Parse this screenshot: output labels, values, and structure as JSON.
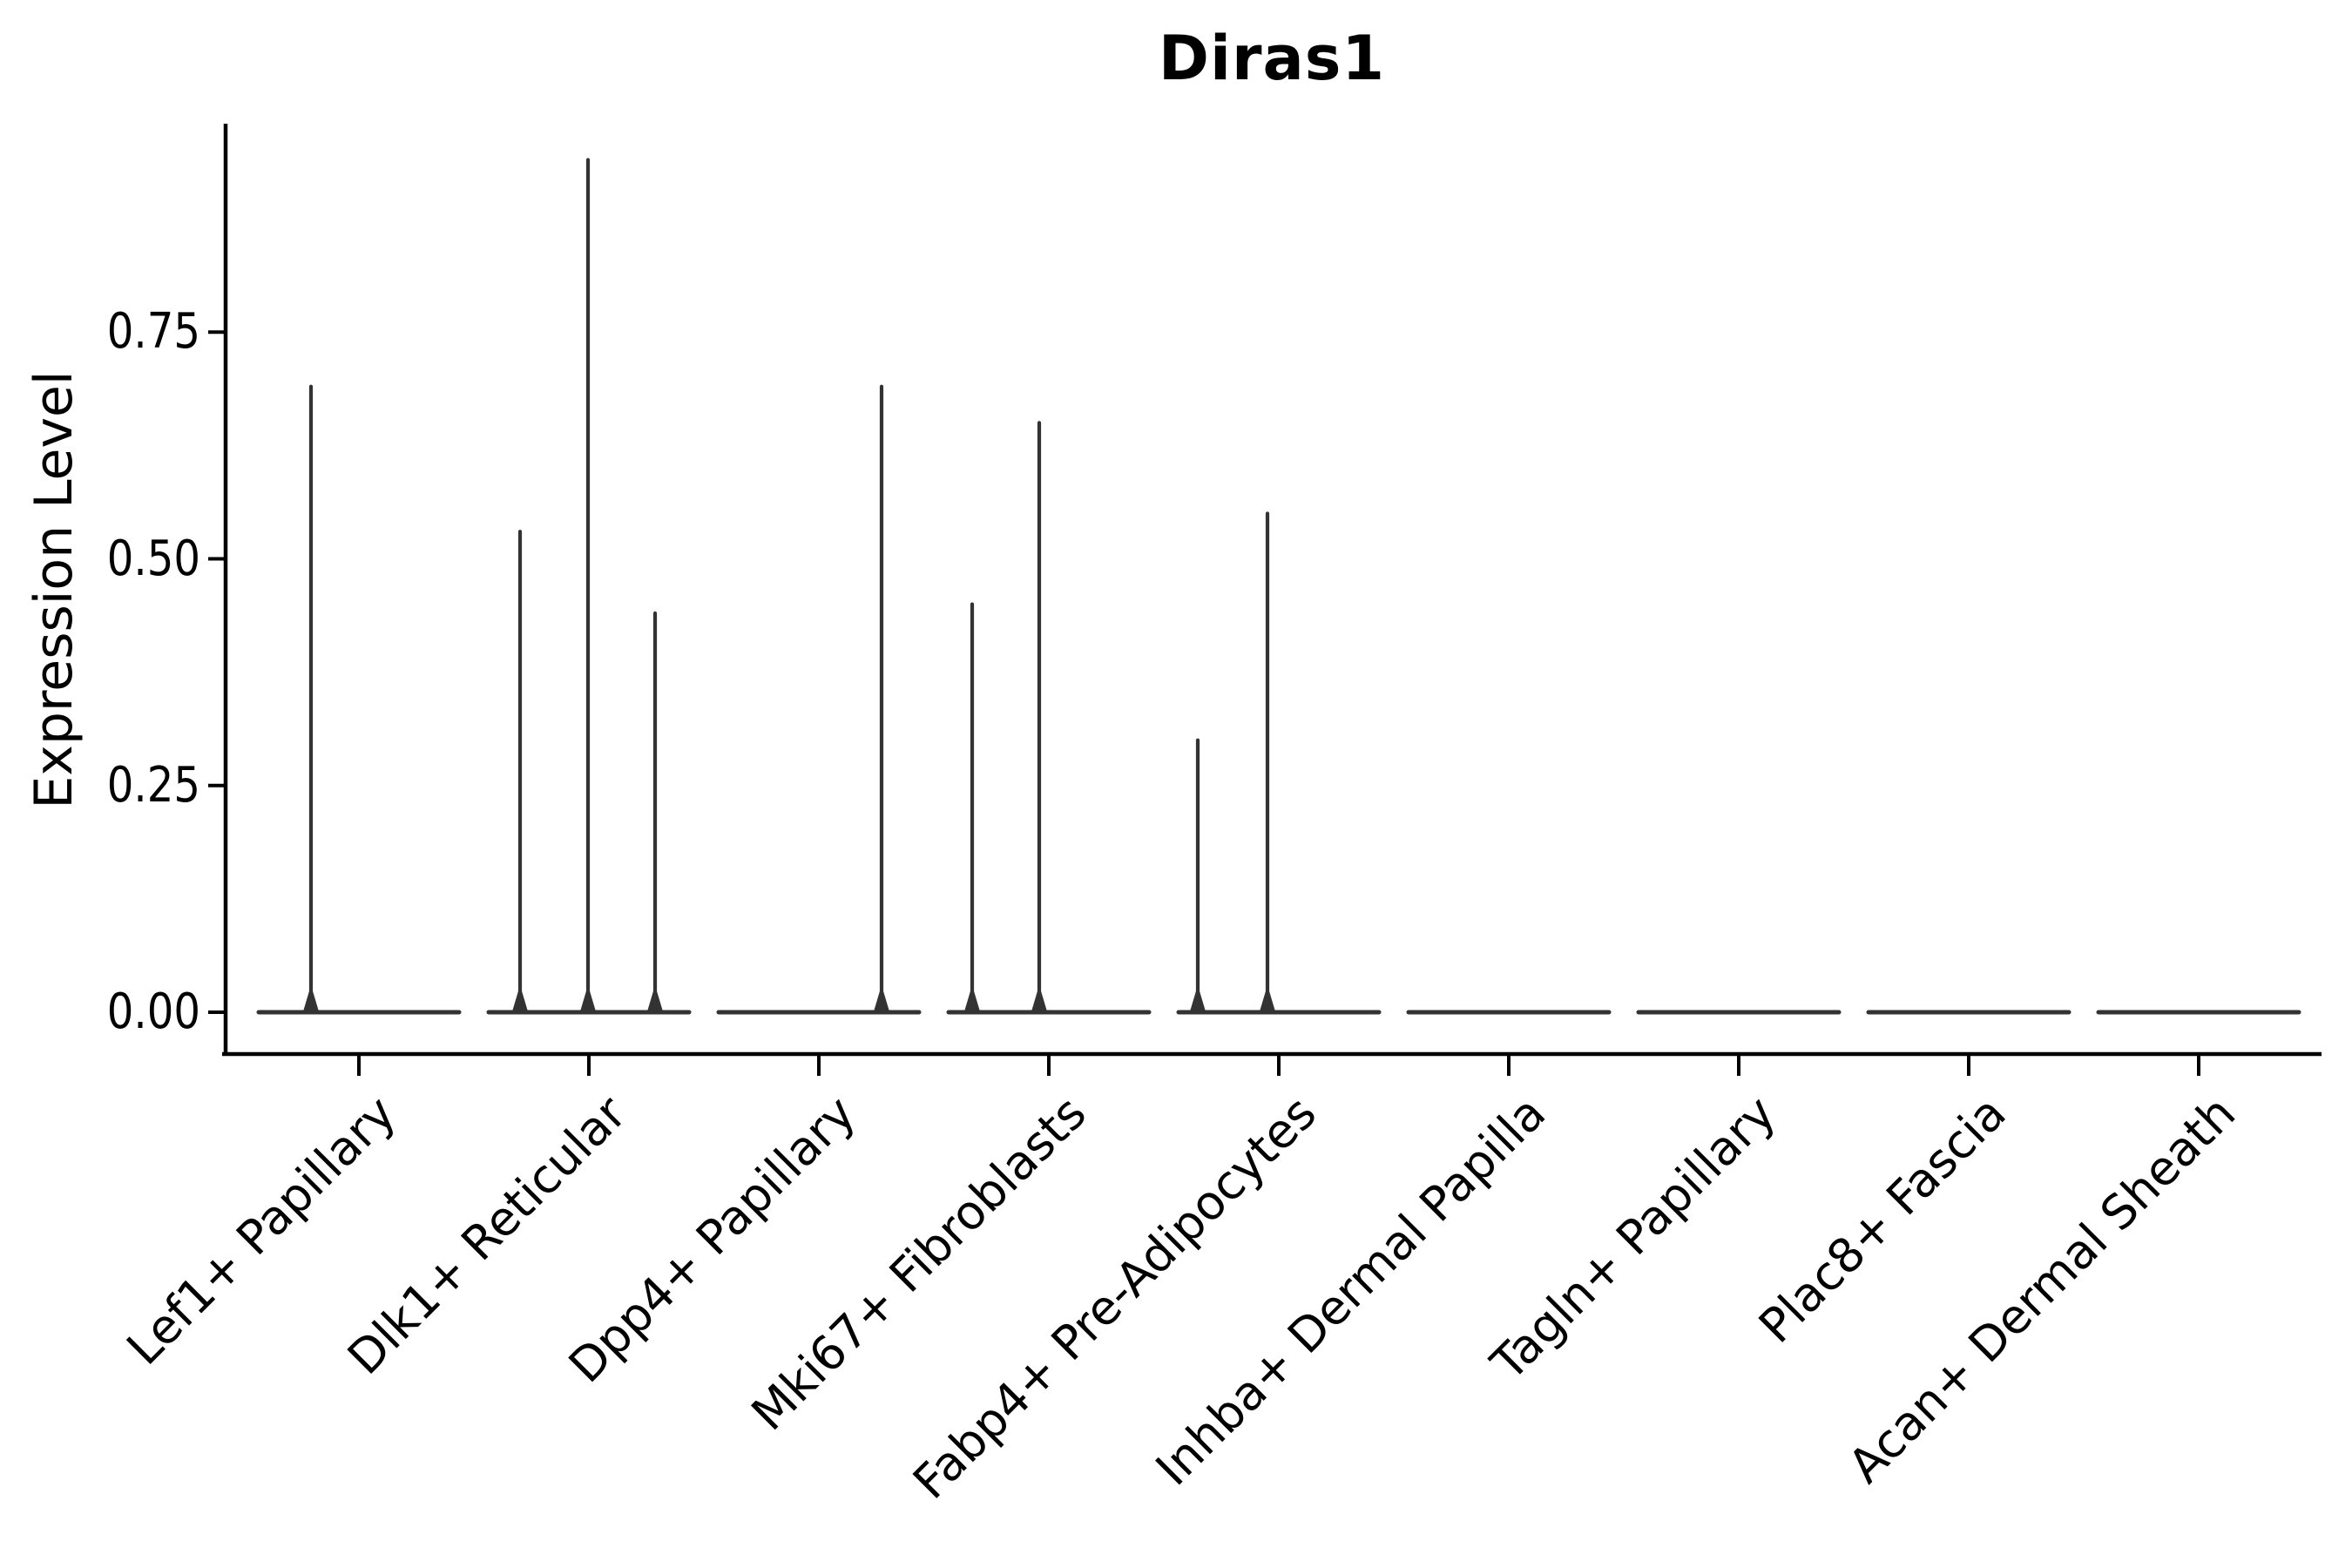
{
  "figure": {
    "title": "Diras1",
    "background_color": "#ffffff"
  },
  "y_axis": {
    "label": "Expression Level",
    "tick_labels": [
      "0.00",
      "0.25",
      "0.50",
      "0.75"
    ]
  },
  "x_axis": {
    "label": "",
    "tick_labels": [
      "Lef1+ Papillary",
      "Dlk1+ Reticular",
      "Dpp4+ Papillary",
      "Mki67+ Fibroblasts",
      "Fabp4+ Pre-Adipocytes",
      "Inhba+ Dermal Papilla",
      "Tagln+ Papillary",
      "Plac8+ Fascia",
      "Acan+ Dermal Sheath"
    ]
  },
  "colors": {
    "violin_line": "#333333",
    "axis_line": "#000000",
    "text": "#000000",
    "background": "#ffffff"
  },
  "chart_data": {
    "type": "violin",
    "title": "Diras1",
    "xlabel": "",
    "ylabel": "Expression Level",
    "ylim": [
      0,
      0.98
    ],
    "grid": false,
    "legend": null,
    "y_ticks": [
      0,
      0.25,
      0.5,
      0.75
    ],
    "y_tick_labels": [
      "0.00",
      "0.25",
      "0.50",
      "0.75"
    ],
    "categories": [
      "Lef1+ Papillary",
      "Dlk1+ Reticular",
      "Dpp4+ Papillary",
      "Mki67+ Fibroblasts",
      "Fabp4+ Pre-Adipocytes",
      "Inhba+ Dermal Papilla",
      "Tagln+ Papillary",
      "Plac8+ Fascia",
      "Acan+ Dermal Sheath"
    ],
    "description": "Violin plot of Diras1 expression; most cells express 0 (flat violins at baseline) with thin spikes at the expression values of rare positive cells.",
    "series": [
      {
        "category": "Lef1+ Papillary",
        "baseline_value": 0,
        "spikes": [
          {
            "dx": -55,
            "value": 0.69
          }
        ]
      },
      {
        "category": "Dlk1+ Reticular",
        "baseline_value": 0,
        "spikes": [
          {
            "dx": -79,
            "value": 0.53
          },
          {
            "dx": -1,
            "value": 0.94
          },
          {
            "dx": 76,
            "value": 0.44
          }
        ]
      },
      {
        "category": "Dpp4+ Papillary",
        "baseline_value": 0,
        "spikes": [
          {
            "dx": 72,
            "value": 0.69
          }
        ]
      },
      {
        "category": "Mki67+ Fibroblasts",
        "baseline_value": 0,
        "spikes": [
          {
            "dx": -88,
            "value": 0.45
          },
          {
            "dx": -11,
            "value": 0.65
          }
        ]
      },
      {
        "category": "Fabp4+ Pre-Adipocytes",
        "baseline_value": 0,
        "spikes": [
          {
            "dx": -93,
            "value": 0.3
          },
          {
            "dx": -13,
            "value": 0.55
          }
        ]
      },
      {
        "category": "Inhba+ Dermal Papilla",
        "baseline_value": 0,
        "spikes": []
      },
      {
        "category": "Tagln+ Papillary",
        "baseline_value": 0,
        "spikes": []
      },
      {
        "category": "Plac8+ Fascia",
        "baseline_value": 0,
        "spikes": []
      },
      {
        "category": "Acan+ Dermal Sheath",
        "baseline_value": 0,
        "spikes": []
      }
    ]
  }
}
